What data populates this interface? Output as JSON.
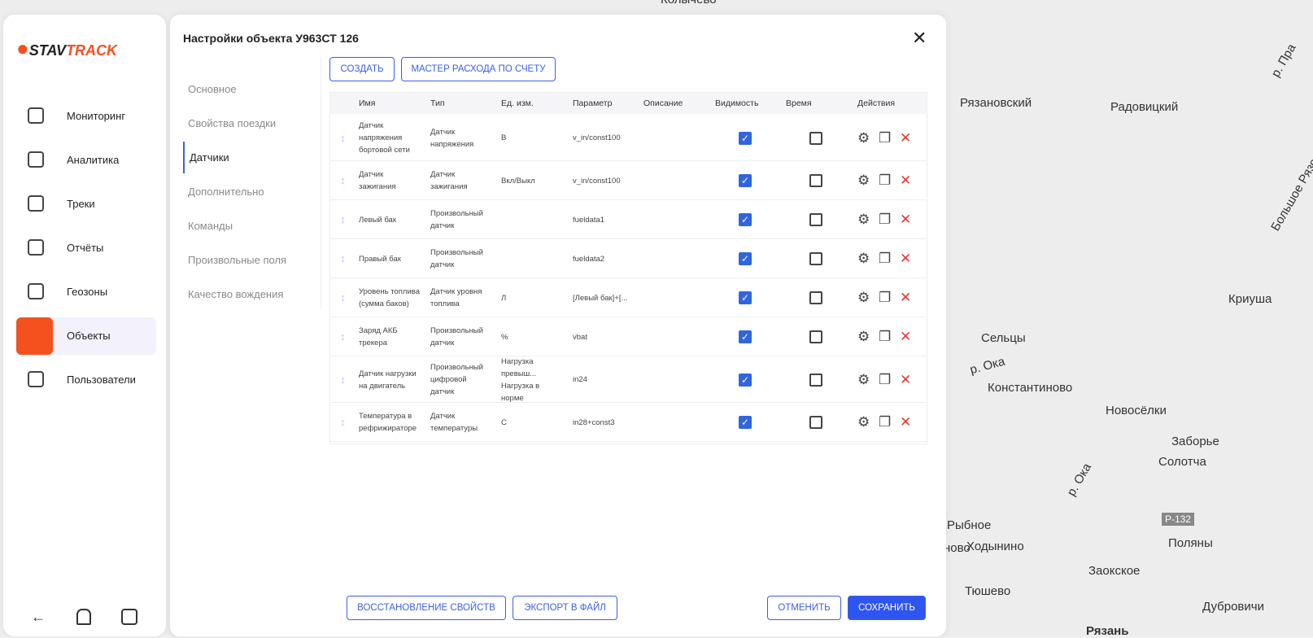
{
  "logo": {
    "part1": "STAV",
    "part2": "TRACK"
  },
  "nav": [
    "Мониторинг",
    "Аналитика",
    "Треки",
    "Отчёты",
    "Геозоны",
    "Объекты",
    "Пользователи"
  ],
  "dialog": {
    "title": "Настройки объекта У963СТ 126",
    "tabs": [
      "Основное",
      "Свойства поездки",
      "Датчики",
      "Дополнительно",
      "Команды",
      "Произвольные поля",
      "Качество вождения"
    ],
    "toolbar": [
      "СОЗДАТЬ",
      "МАСТЕР РАСХОДА ПО СЧЕТУ"
    ],
    "table": {
      "columns": [
        "Имя",
        "Тип",
        "Ед. изм.",
        "Параметр",
        "Описание",
        "Видимость",
        "Время",
        "Действия"
      ],
      "rows": [
        {
          "name": "Датчик напряжения бортовой сети",
          "type": "Датчик напряжения",
          "unit": "В",
          "param": "v_in/const100",
          "visible": true,
          "time": false
        },
        {
          "name": "Датчик зажигания",
          "type": "Датчик зажигания",
          "unit": "Вкл/Выкл",
          "param": "v_in/const100",
          "visible": true,
          "time": false
        },
        {
          "name": "Левый бак",
          "type": "Произвольный датчик",
          "param": "fueldata1",
          "visible": true,
          "time": false
        },
        {
          "name": "Правый бак",
          "type": "Произвольный датчик",
          "param": "fueldata2",
          "visible": true,
          "time": false
        },
        {
          "name": "Уровень топлива (сумма баков)",
          "type": "Датчик уровня топлива",
          "unit": "Л",
          "param": "[Левый бак]+[...",
          "visible": true,
          "time": false
        },
        {
          "name": "Заряд АКБ трекера",
          "type": "Произвольный датчик",
          "unit": "%",
          "param": "vbat",
          "visible": true,
          "time": false
        },
        {
          "name": "Датчик нагрузки на двигатель",
          "type": "Произвольный цифровой датчик",
          "unit": "Нагрузка превыш... Нагрузка в норме",
          "param": "in24",
          "visible": true,
          "time": false
        },
        {
          "name": "Температура в рефрижираторе",
          "type": "Датчик температуры",
          "unit": "С",
          "param": "in28+const3",
          "visible": true,
          "time": false
        }
      ]
    },
    "footer_left": [
      "ВОССТАНОВЛЕНИЕ СВОЙСТВ",
      "ЭКСПОРТ В ФАЙЛ"
    ],
    "footer_right": [
      "ОТМЕНИТЬ",
      "СОХРАНИТЬ"
    ]
  },
  "map_labels": [
    "Колычево",
    "Рязановский",
    "Радовицкий",
    "Большое Рязское",
    "Криуша",
    "Сельцы",
    "р. Ока",
    "Константиново",
    "Новосёлки",
    "Заборье",
    "Солотча",
    "р. Ока",
    "Рыбное",
    "Ходынино",
    "Поляны",
    "Р-132",
    "Заокское",
    "Тюшево",
    "Дубровичи",
    "Рязань",
    "р. Пра",
    "ново"
  ]
}
